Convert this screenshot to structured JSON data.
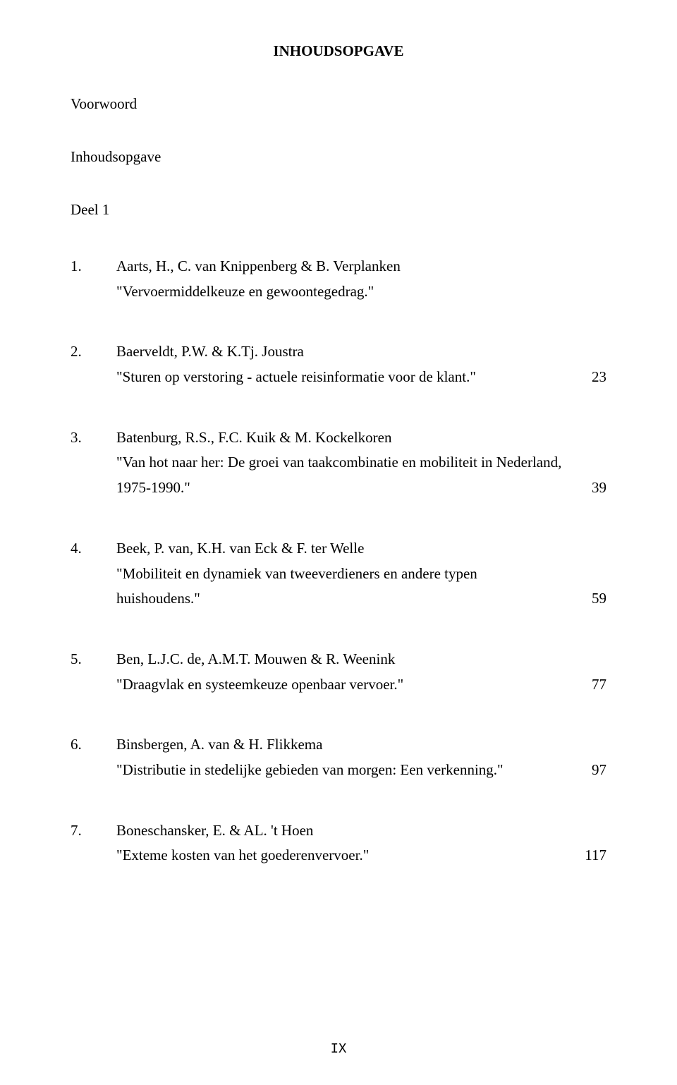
{
  "title": "INHOUDSOPGAVE",
  "preface": "Voorwoord",
  "toc_label": "Inhoudsopgave",
  "part_label": "Deel 1",
  "entries": [
    {
      "num": "1.",
      "authors": "Aarts, H., C. van Knippenberg & B. Verplanken",
      "paper": "\"Vervoermiddelkeuze en gewoontegedrag.\"",
      "page": ""
    },
    {
      "num": "2.",
      "authors": "Baerveldt, P.W. & K.Tj. Joustra",
      "paper": "\"Sturen op verstoring - actuele reisinformatie voor de klant.\"",
      "page": "23"
    },
    {
      "num": "3.",
      "authors": "Batenburg, R.S., F.C. Kuik & M. Kockelkoren",
      "paper": "\"Van hot naar her: De groei van taakcombinatie en mobiliteit in Nederland, 1975-1990.\"",
      "page": "39"
    },
    {
      "num": "4.",
      "authors": "Beek, P. van, K.H. van Eck & F. ter Welle",
      "paper": "\"Mobiliteit en dynamiek van tweeverdieners en andere typen huishoudens.\"",
      "page": "59"
    },
    {
      "num": "5.",
      "authors": "Ben, L.J.C. de, A.M.T. Mouwen & R. Weenink",
      "paper": "\"Draagvlak en systeemkeuze openbaar vervoer.\"",
      "page": "77"
    },
    {
      "num": "6.",
      "authors": "Binsbergen, A. van & H. Flikkema",
      "paper": "\"Distributie in stedelijke gebieden van morgen: Een verkenning.\"",
      "page": "97"
    },
    {
      "num": "7.",
      "authors": "Boneschansker, E. & AL. 't Hoen",
      "paper": "\"Exteme kosten van het goederenvervoer.\"",
      "page": "117"
    }
  ],
  "page_number": "IX"
}
